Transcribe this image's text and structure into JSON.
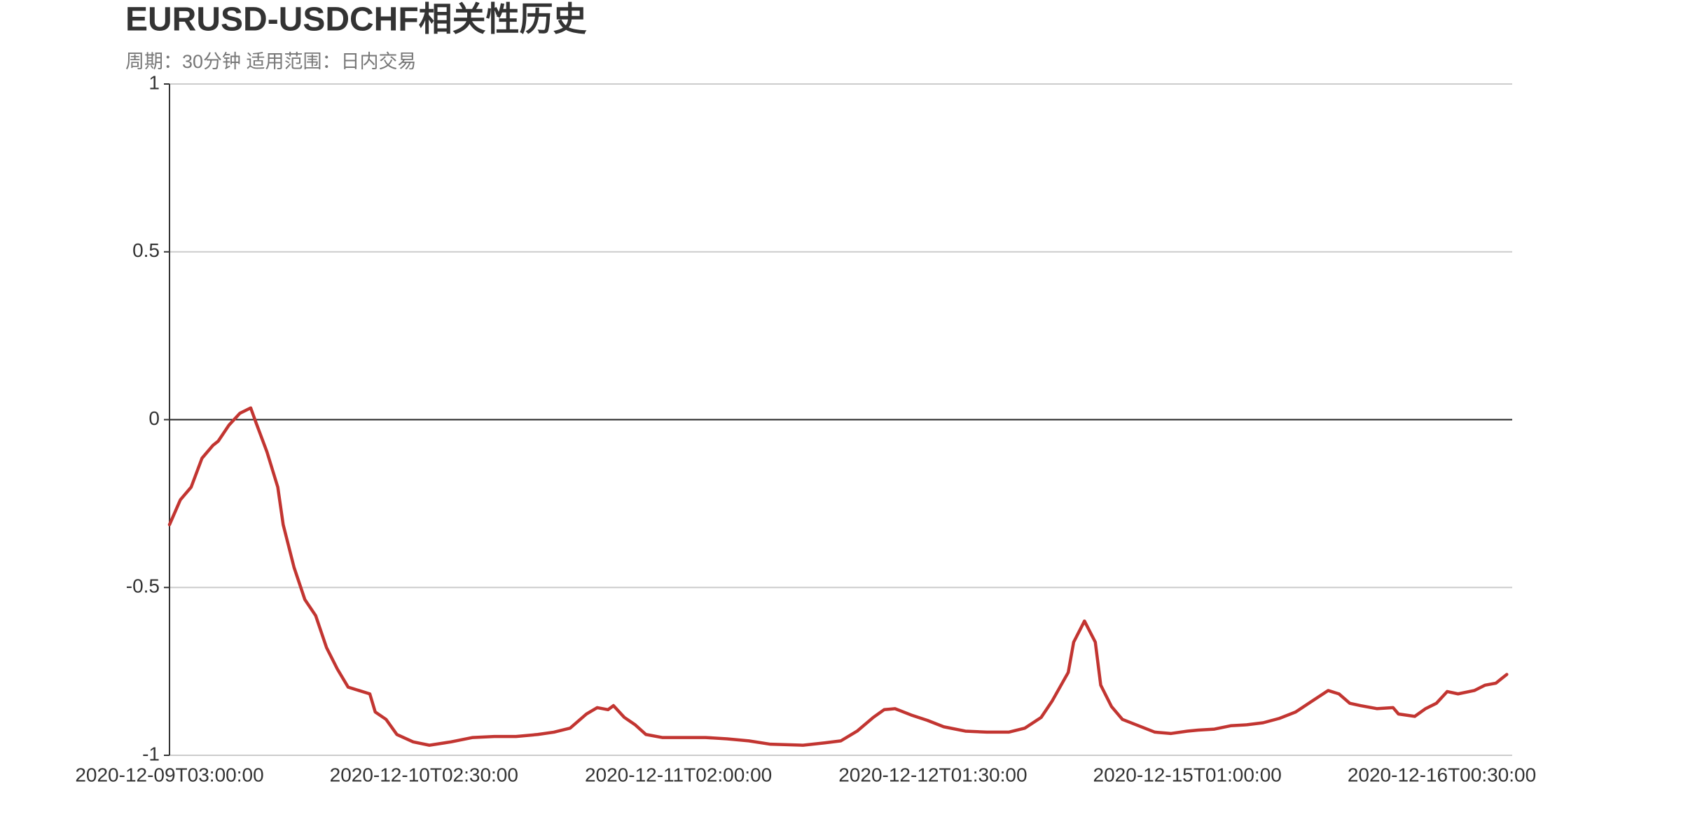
{
  "chart_data": {
    "type": "line",
    "title": "EURUSD-USDCHF相关性历史",
    "subtitle": "周期：30分钟 适用范围：日内交易",
    "x": [
      0,
      2,
      4,
      6,
      8,
      9,
      11,
      13,
      15,
      16,
      18,
      20,
      21,
      23,
      25,
      27,
      29,
      31,
      33,
      35,
      37,
      38,
      40,
      42,
      45,
      48,
      52,
      56,
      60,
      64,
      68,
      71,
      74,
      77,
      79,
      81,
      82,
      84,
      86,
      88,
      91,
      95,
      99,
      103,
      107,
      111,
      117,
      121,
      124,
      127,
      130,
      132,
      134,
      137,
      140,
      143,
      147,
      151,
      155,
      158,
      161,
      163,
      166,
      167,
      169,
      171,
      172,
      174,
      176,
      179,
      182,
      185,
      188,
      190,
      193,
      196,
      199,
      202,
      205,
      208,
      211,
      214,
      216,
      218,
      220,
      223,
      226,
      227,
      230,
      232,
      234,
      236,
      238,
      241,
      243,
      245,
      246,
      247
    ],
    "series": [
      {
        "name": "EURUSD-USDCHF",
        "color": "#c23531",
        "values": [
          -0.313,
          -0.239,
          -0.201,
          -0.115,
          -0.077,
          -0.064,
          -0.016,
          0.019,
          0.035,
          -0.01,
          -0.096,
          -0.201,
          -0.313,
          -0.44,
          -0.536,
          -0.584,
          -0.679,
          -0.743,
          -0.797,
          -0.807,
          -0.817,
          -0.871,
          -0.893,
          -0.938,
          -0.96,
          -0.97,
          -0.96,
          -0.947,
          -0.944,
          -0.944,
          -0.938,
          -0.931,
          -0.919,
          -0.877,
          -0.858,
          -0.864,
          -0.852,
          -0.887,
          -0.909,
          -0.938,
          -0.947,
          -0.947,
          -0.947,
          -0.951,
          -0.957,
          -0.967,
          -0.97,
          -0.963,
          -0.957,
          -0.928,
          -0.887,
          -0.864,
          -0.861,
          -0.88,
          -0.896,
          -0.915,
          -0.928,
          -0.931,
          -0.931,
          -0.919,
          -0.887,
          -0.839,
          -0.753,
          -0.663,
          -0.6,
          -0.663,
          -0.791,
          -0.855,
          -0.893,
          -0.912,
          -0.931,
          -0.935,
          -0.928,
          -0.925,
          -0.922,
          -0.912,
          -0.909,
          -0.903,
          -0.89,
          -0.871,
          -0.839,
          -0.807,
          -0.817,
          -0.845,
          -0.852,
          -0.861,
          -0.858,
          -0.877,
          -0.884,
          -0.861,
          -0.845,
          -0.81,
          -0.817,
          -0.807,
          -0.791,
          -0.785,
          -0.772,
          -0.759
        ]
      }
    ],
    "xlim": [
      0,
      248
    ],
    "xticks": [
      {
        "value": 0,
        "label": "2020-12-09T03:00:00"
      },
      {
        "value": 47,
        "label": "2020-12-10T02:30:00"
      },
      {
        "value": 94,
        "label": "2020-12-11T02:00:00"
      },
      {
        "value": 141,
        "label": "2020-12-12T01:30:00"
      },
      {
        "value": 188,
        "label": "2020-12-15T01:00:00"
      },
      {
        "value": 235,
        "label": "2020-12-16T00:30:00"
      }
    ],
    "ylim": [
      -1,
      1
    ],
    "yticks": [
      -1,
      -0.5,
      0,
      0.5,
      1
    ],
    "grid": true
  }
}
